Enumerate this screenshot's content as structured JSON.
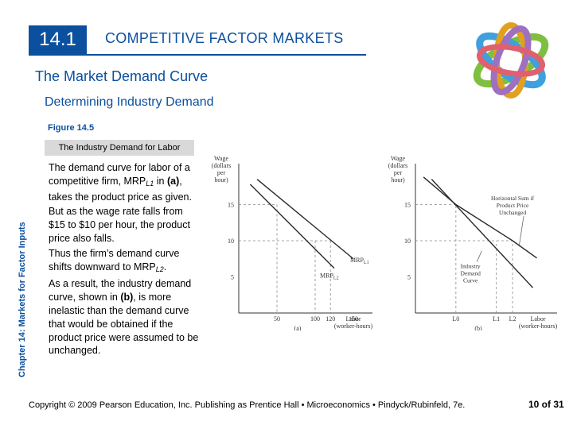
{
  "header": {
    "section_number": "14.1",
    "title": "COMPETITIVE FACTOR MARKETS",
    "logo_icon": "interlocking-rings-icon"
  },
  "subtitle": "The Market Demand Curve",
  "subheading": "Determining Industry Demand",
  "figure": {
    "label": "Figure 14.5",
    "title": "The Industry Demand for Labor"
  },
  "side_label": "Chapter 14: Markets for Factor Inputs",
  "body": {
    "p1_a": "The demand curve for labor of a competitive firm, MRP",
    "p1_sub": "L1",
    "p1_b": " in ",
    "p1_bold": "(a)",
    "p1_c": ", takes the product price as given.",
    "p2": "But as the wage rate falls from $15 to $10 per hour, the product price also falls.",
    "p3_a": "Thus the firm’s demand curve shifts downward to MRP",
    "p3_sub": "L2",
    "p3_b": ".",
    "p4_a": "As a result, the industry demand curve, shown in ",
    "p4_bold": "(b)",
    "p4_b": ", is more inelastic than the demand curve that would be obtained if the product price were assumed to be unchanged."
  },
  "chart_data": [
    {
      "type": "line",
      "panel_label": "(a)",
      "ylabel": [
        "Wage",
        "(dollars",
        "per",
        "hour)"
      ],
      "xlabel": [
        "Labor",
        "(worker-hours)"
      ],
      "y_ticks": [
        {
          "value": 15,
          "label": "15"
        },
        {
          "value": 10,
          "label": "10"
        },
        {
          "value": 5,
          "label": "5"
        }
      ],
      "x_ticks": [
        {
          "value": 50,
          "label": "50"
        },
        {
          "value": 100,
          "label": "100"
        },
        {
          "value": 120,
          "label": "120"
        },
        {
          "value": 150,
          "label": "150"
        }
      ],
      "xlim": [
        0,
        175
      ],
      "ylim": [
        0,
        20
      ],
      "series": [
        {
          "name": "MRP_L1",
          "label": "MRP",
          "label_sub": "L1",
          "points": [
            [
              24,
              18.5
            ],
            [
              150,
              7.5
            ]
          ]
        },
        {
          "name": "MRP_L2",
          "label": "MRP",
          "label_sub": "L2",
          "points": [
            [
              15,
              17.8
            ],
            [
              125,
              6.2
            ]
          ]
        }
      ],
      "guides": [
        {
          "from": [
            0,
            15
          ],
          "to": [
            50,
            15
          ]
        },
        {
          "from": [
            50,
            15
          ],
          "to": [
            50,
            0
          ]
        },
        {
          "from": [
            0,
            10
          ],
          "to": [
            120,
            10
          ]
        },
        {
          "from": [
            120,
            10
          ],
          "to": [
            120,
            0
          ]
        },
        {
          "from": [
            100,
            10
          ],
          "to": [
            100,
            0
          ]
        }
      ]
    },
    {
      "type": "line",
      "panel_label": "(b)",
      "ylabel": [
        "Wage",
        "(dollars",
        "per",
        "hour)"
      ],
      "xlabel": [
        "Labor",
        "(worker-hours)"
      ],
      "y_ticks": [
        {
          "value": 15,
          "label": "15"
        },
        {
          "value": 10,
          "label": "10"
        },
        {
          "value": 5,
          "label": "5"
        }
      ],
      "x_ticks": [
        {
          "value": 50,
          "label": "L0"
        },
        {
          "value": 100,
          "label": "L1"
        },
        {
          "value": 120,
          "label": "L2"
        }
      ],
      "xlim": [
        0,
        175
      ],
      "ylim": [
        0,
        20
      ],
      "series": [
        {
          "name": "Industry Demand Curve",
          "points": [
            [
              10,
              18.8
            ],
            [
              50,
              15
            ],
            [
              120,
              10
            ],
            [
              150,
              7.6
            ]
          ]
        },
        {
          "name": "Horizontal Sum if Product Price Unchanged",
          "points": [
            [
              20,
              18.5
            ],
            [
              145,
              3.5
            ]
          ]
        }
      ],
      "annotations": [
        {
          "text": [
            "Horizontal Sum if",
            "Product Price",
            "Unchanged"
          ]
        },
        {
          "text": [
            "Industry",
            "Demand",
            "Curve"
          ]
        }
      ]
    }
  ],
  "footer": {
    "copyright": "Copyright © 2009 Pearson Education, Inc. Publishing as Prentice Hall • Microeconomics • Pindyck/Rubinfeld, 7e.",
    "page_number": "10 of 31"
  },
  "colors": {
    "brand_blue": "#0b4f9f",
    "figure_box": "#d9d9d9"
  }
}
